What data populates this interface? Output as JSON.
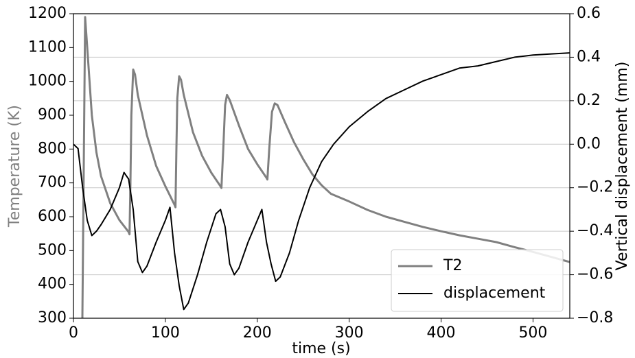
{
  "chart_data": {
    "type": "line",
    "x_label": "time (s)",
    "y_label": "Temperature (K)",
    "y2_label": "Vertical displacement (mm)",
    "xlim": [
      0,
      540
    ],
    "xticks": [
      0,
      100,
      200,
      300,
      400,
      500
    ],
    "ylim": [
      300,
      1200
    ],
    "yticks": [
      300,
      400,
      500,
      600,
      700,
      800,
      900,
      1000,
      1100,
      1200
    ],
    "y2lim": [
      -0.8,
      0.6
    ],
    "y2ticks": [
      {
        "value": -0.8,
        "label": "−0.8"
      },
      {
        "value": -0.6,
        "label": "−0.6"
      },
      {
        "value": -0.4,
        "label": "−0.4"
      },
      {
        "value": -0.2,
        "label": "−0.2"
      },
      {
        "value": 0.0,
        "label": "0.0"
      },
      0.2,
      0.4,
      0.6
    ],
    "grid": "y2",
    "legend": "lower right",
    "y_label_color": "#808080",
    "series": [
      {
        "name": "T2",
        "color": "#808080",
        "axis": "y",
        "x": [
          9.7,
          12.7,
          15,
          20,
          25,
          30,
          40,
          50,
          60,
          61,
          62,
          63,
          65,
          67,
          70,
          80,
          90,
          100,
          110,
          111,
          112,
          113,
          115,
          117,
          120,
          130,
          140,
          150,
          160,
          161,
          163,
          165,
          167,
          170,
          180,
          190,
          200,
          210,
          211,
          213,
          216,
          219,
          222,
          230,
          240,
          250,
          260,
          270,
          280,
          300,
          320,
          340,
          360,
          380,
          400,
          420,
          440,
          460,
          480,
          500,
          520,
          540
        ],
        "values": [
          300,
          1190,
          1100,
          900,
          790,
          720,
          640,
          590,
          555,
          548,
          700,
          900,
          1035,
          1020,
          960,
          840,
          750,
          690,
          635,
          628,
          800,
          950,
          1015,
          1005,
          960,
          850,
          780,
          730,
          690,
          685,
          800,
          930,
          960,
          945,
          870,
          800,
          755,
          715,
          710,
          800,
          910,
          935,
          930,
          880,
          820,
          770,
          725,
          693,
          668,
          645,
          620,
          600,
          585,
          570,
          557,
          545,
          535,
          525,
          510,
          496,
          481,
          466
        ]
      },
      {
        "name": "displacement",
        "color": "#000000",
        "axis": "y2",
        "x": [
          0,
          5,
          10,
          15,
          20,
          25,
          30,
          40,
          50,
          55,
          60,
          65,
          70,
          75,
          80,
          90,
          100,
          105,
          110,
          115,
          120,
          125,
          135,
          145,
          155,
          160,
          165,
          170,
          175,
          180,
          190,
          200,
          205,
          210,
          215,
          220,
          225,
          235,
          245,
          257,
          270,
          283,
          300,
          320,
          340,
          360,
          380,
          400,
          420,
          440,
          460,
          480,
          500,
          520,
          540
        ],
        "values": [
          0.0,
          -0.02,
          -0.2,
          -0.35,
          -0.42,
          -0.4,
          -0.37,
          -0.3,
          -0.2,
          -0.13,
          -0.16,
          -0.3,
          -0.54,
          -0.59,
          -0.56,
          -0.45,
          -0.35,
          -0.29,
          -0.5,
          -0.65,
          -0.76,
          -0.73,
          -0.6,
          -0.45,
          -0.32,
          -0.3,
          -0.38,
          -0.55,
          -0.6,
          -0.57,
          -0.45,
          -0.35,
          -0.3,
          -0.45,
          -0.55,
          -0.63,
          -0.61,
          -0.5,
          -0.35,
          -0.2,
          -0.08,
          0.0,
          0.08,
          0.15,
          0.21,
          0.25,
          0.29,
          0.32,
          0.35,
          0.36,
          0.38,
          0.4,
          0.41,
          0.415,
          0.42
        ]
      }
    ]
  }
}
